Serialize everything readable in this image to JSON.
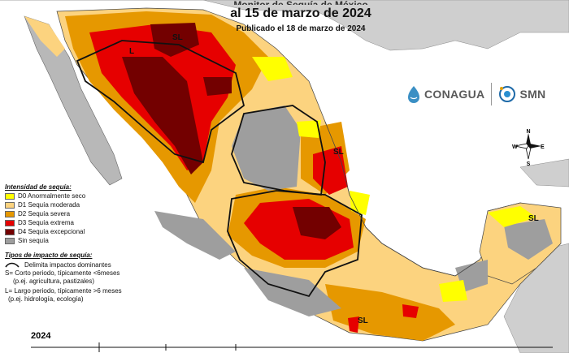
{
  "title": {
    "line1": "Monitor de Sequía de México",
    "line2": "al 15 de marzo de 2024",
    "line3": "Publicado el 18 de marzo de 2024"
  },
  "colors": {
    "D0": "#ffff00",
    "D1": "#fcd37f",
    "D2": "#e69800",
    "D3": "#e60000",
    "D4": "#730000",
    "sin_sequia": "#9e9e9e",
    "ocean": "#ffffff",
    "land_background": "#c9c9c9"
  },
  "legend": {
    "intensity_header": "Intensidad de sequía:",
    "intensity": [
      {
        "key": "D0",
        "label": "D0 Anormalmente seco"
      },
      {
        "key": "D1",
        "label": "D1 Sequía moderada"
      },
      {
        "key": "D2",
        "label": "D2 Sequía severa"
      },
      {
        "key": "D3",
        "label": "D3 Sequía extrema"
      },
      {
        "key": "D4",
        "label": "D4 Sequía excepcional"
      },
      {
        "key": "sin_sequia",
        "label": "Sin sequía"
      }
    ],
    "impact_header": "Tipos de impacto de sequía:",
    "impact_line": "Delimita impactos dominantes",
    "impact_s1": "S= Corto periodo, típicamente <6meses",
    "impact_s2": "(p.ej. agricultura, pastizales)",
    "impact_l1": "L= Largo periodo, típicamente >6 meses",
    "impact_l2": "(p.ej. hidrología, ecología)"
  },
  "map_labels": {
    "sl_nw": "SL",
    "l_nw": "L",
    "sl_ne": "SL",
    "sl_yucatan": "SL",
    "sl_south": "SL"
  },
  "logos": {
    "conagua": "CONAGUA",
    "smn": "SMN"
  },
  "compass": {
    "n": "N",
    "s": "S",
    "e": "E",
    "w": "W"
  },
  "timeline": {
    "year": "2024"
  }
}
